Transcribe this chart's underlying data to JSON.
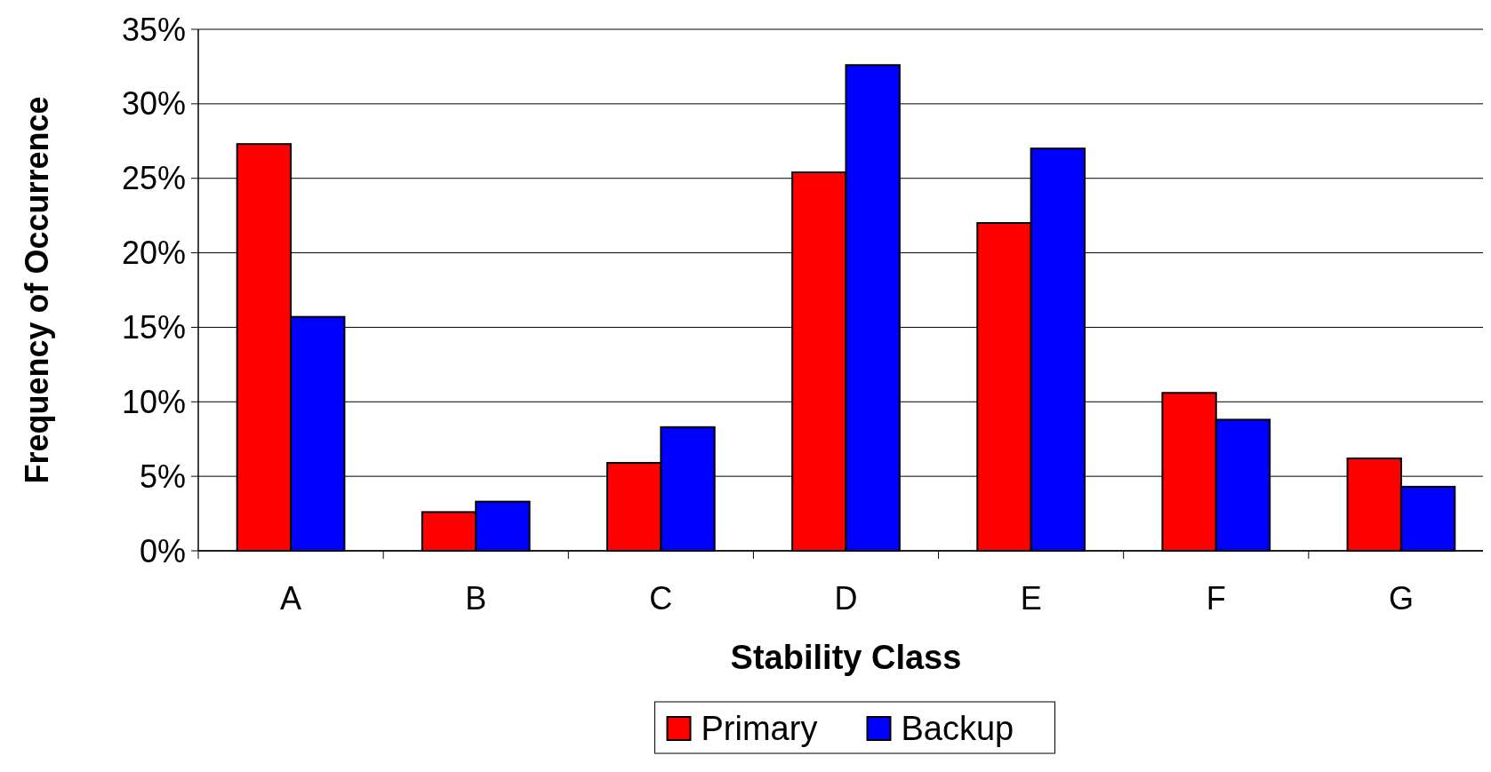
{
  "chart_data": {
    "type": "bar",
    "xlabel": "Stability Class",
    "ylabel": "Frequency of Occurrence",
    "categories": [
      "A",
      "B",
      "C",
      "D",
      "E",
      "F",
      "G"
    ],
    "series": [
      {
        "name": "Primary",
        "color": "#ff0000",
        "values": [
          27.3,
          2.6,
          5.9,
          25.4,
          22.0,
          10.6,
          6.2
        ]
      },
      {
        "name": "Backup",
        "color": "#0000ff",
        "values": [
          15.7,
          3.3,
          8.3,
          32.6,
          27.0,
          8.8,
          4.3
        ]
      }
    ],
    "ylim": [
      0,
      35
    ],
    "yticks": [
      {
        "value": 0,
        "label": "0%"
      },
      {
        "value": 5,
        "label": "5%"
      },
      {
        "value": 10,
        "label": "10%"
      },
      {
        "value": 15,
        "label": "15%"
      },
      {
        "value": 20,
        "label": "20%"
      },
      {
        "value": 25,
        "label": "25%"
      },
      {
        "value": 30,
        "label": "30%"
      },
      {
        "value": 35,
        "label": "35%"
      }
    ],
    "grid": "y",
    "legend": "bottom"
  }
}
